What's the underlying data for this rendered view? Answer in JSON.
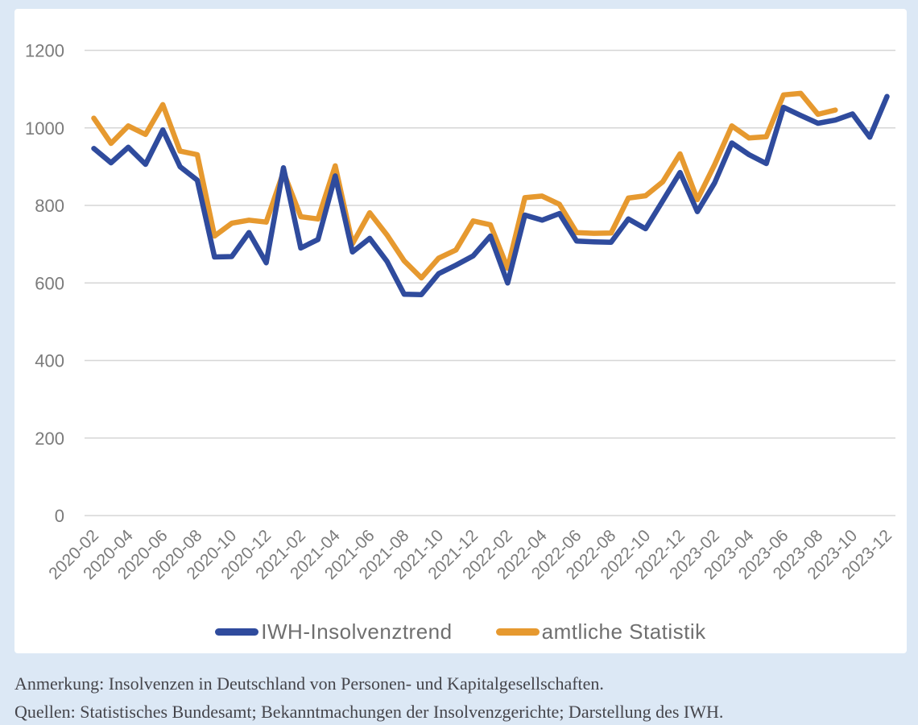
{
  "chart_data": {
    "type": "line",
    "months": [
      "2020-02",
      "2020-03",
      "2020-04",
      "2020-05",
      "2020-06",
      "2020-07",
      "2020-08",
      "2020-09",
      "2020-10",
      "2020-11",
      "2020-12",
      "2021-01",
      "2021-02",
      "2021-03",
      "2021-04",
      "2021-05",
      "2021-06",
      "2021-07",
      "2021-08",
      "2021-09",
      "2021-10",
      "2021-11",
      "2021-12",
      "2022-01",
      "2022-02",
      "2022-03",
      "2022-04",
      "2022-05",
      "2022-06",
      "2022-07",
      "2022-08",
      "2022-09",
      "2022-10",
      "2022-11",
      "2022-12",
      "2023-01",
      "2023-02",
      "2023-03",
      "2023-04",
      "2023-05",
      "2023-06",
      "2023-07",
      "2023-08",
      "2023-09",
      "2023-10",
      "2023-11",
      "2023-12"
    ],
    "x_tick_labels": [
      "2020-02",
      "2020-04",
      "2020-06",
      "2020-08",
      "2020-10",
      "2020-12",
      "2021-02",
      "2021-04",
      "2021-06",
      "2021-08",
      "2021-10",
      "2021-12",
      "2022-02",
      "2022-04",
      "2022-06",
      "2022-08",
      "2022-10",
      "2022-12",
      "2023-02",
      "2023-04",
      "2023-06",
      "2023-08",
      "2023-10",
      "2023-12"
    ],
    "series": [
      {
        "name": "IWH-Insolvenztrend",
        "color": "#2f4b9d",
        "values": [
          947,
          910,
          950,
          906,
          995,
          900,
          865,
          667,
          668,
          730,
          652,
          897,
          690,
          712,
          876,
          680,
          715,
          656,
          571,
          570,
          624,
          646,
          670,
          721,
          600,
          775,
          762,
          779,
          708,
          706,
          705,
          765,
          740,
          812,
          885,
          784,
          858,
          961,
          931,
          908,
          1053,
          1032,
          1012,
          1020,
          1036,
          976,
          1081
        ]
      },
      {
        "name": "amtliche Statistik",
        "color": "#e6992f",
        "values": [
          1025,
          960,
          1005,
          983,
          1060,
          940,
          931,
          721,
          754,
          762,
          757,
          886,
          771,
          765,
          902,
          701,
          781,
          724,
          657,
          613,
          664,
          685,
          760,
          750,
          638,
          820,
          824,
          803,
          730,
          728,
          729,
          819,
          825,
          861,
          933,
          815,
          905,
          1005,
          974,
          977,
          1085,
          1089,
          1035,
          1046,
          null,
          null,
          null
        ]
      }
    ],
    "y_axis": {
      "min": 0,
      "max": 1200,
      "step": 200,
      "tick_labels": [
        "0",
        "200",
        "400",
        "600",
        "800",
        "1000",
        "1200"
      ]
    },
    "grid": true,
    "legend_position": "bottom",
    "title": ""
  },
  "notes": {
    "annotation": "Anmerkung: Insolvenzen in Deutschland von Personen- und Kapitalgesellschaften.",
    "sources": "Quellen: Statistisches Bundesamt; Bekanntmachungen der Insolvenzgerichte; Darstellung des IWH."
  },
  "colors": {
    "background": "#dce8f5",
    "card": "#ffffff",
    "grid": "#d6d6d6",
    "axis_text": "#7b7b7b",
    "legend_text": "#6f6f6f",
    "note_text": "#45454b"
  }
}
